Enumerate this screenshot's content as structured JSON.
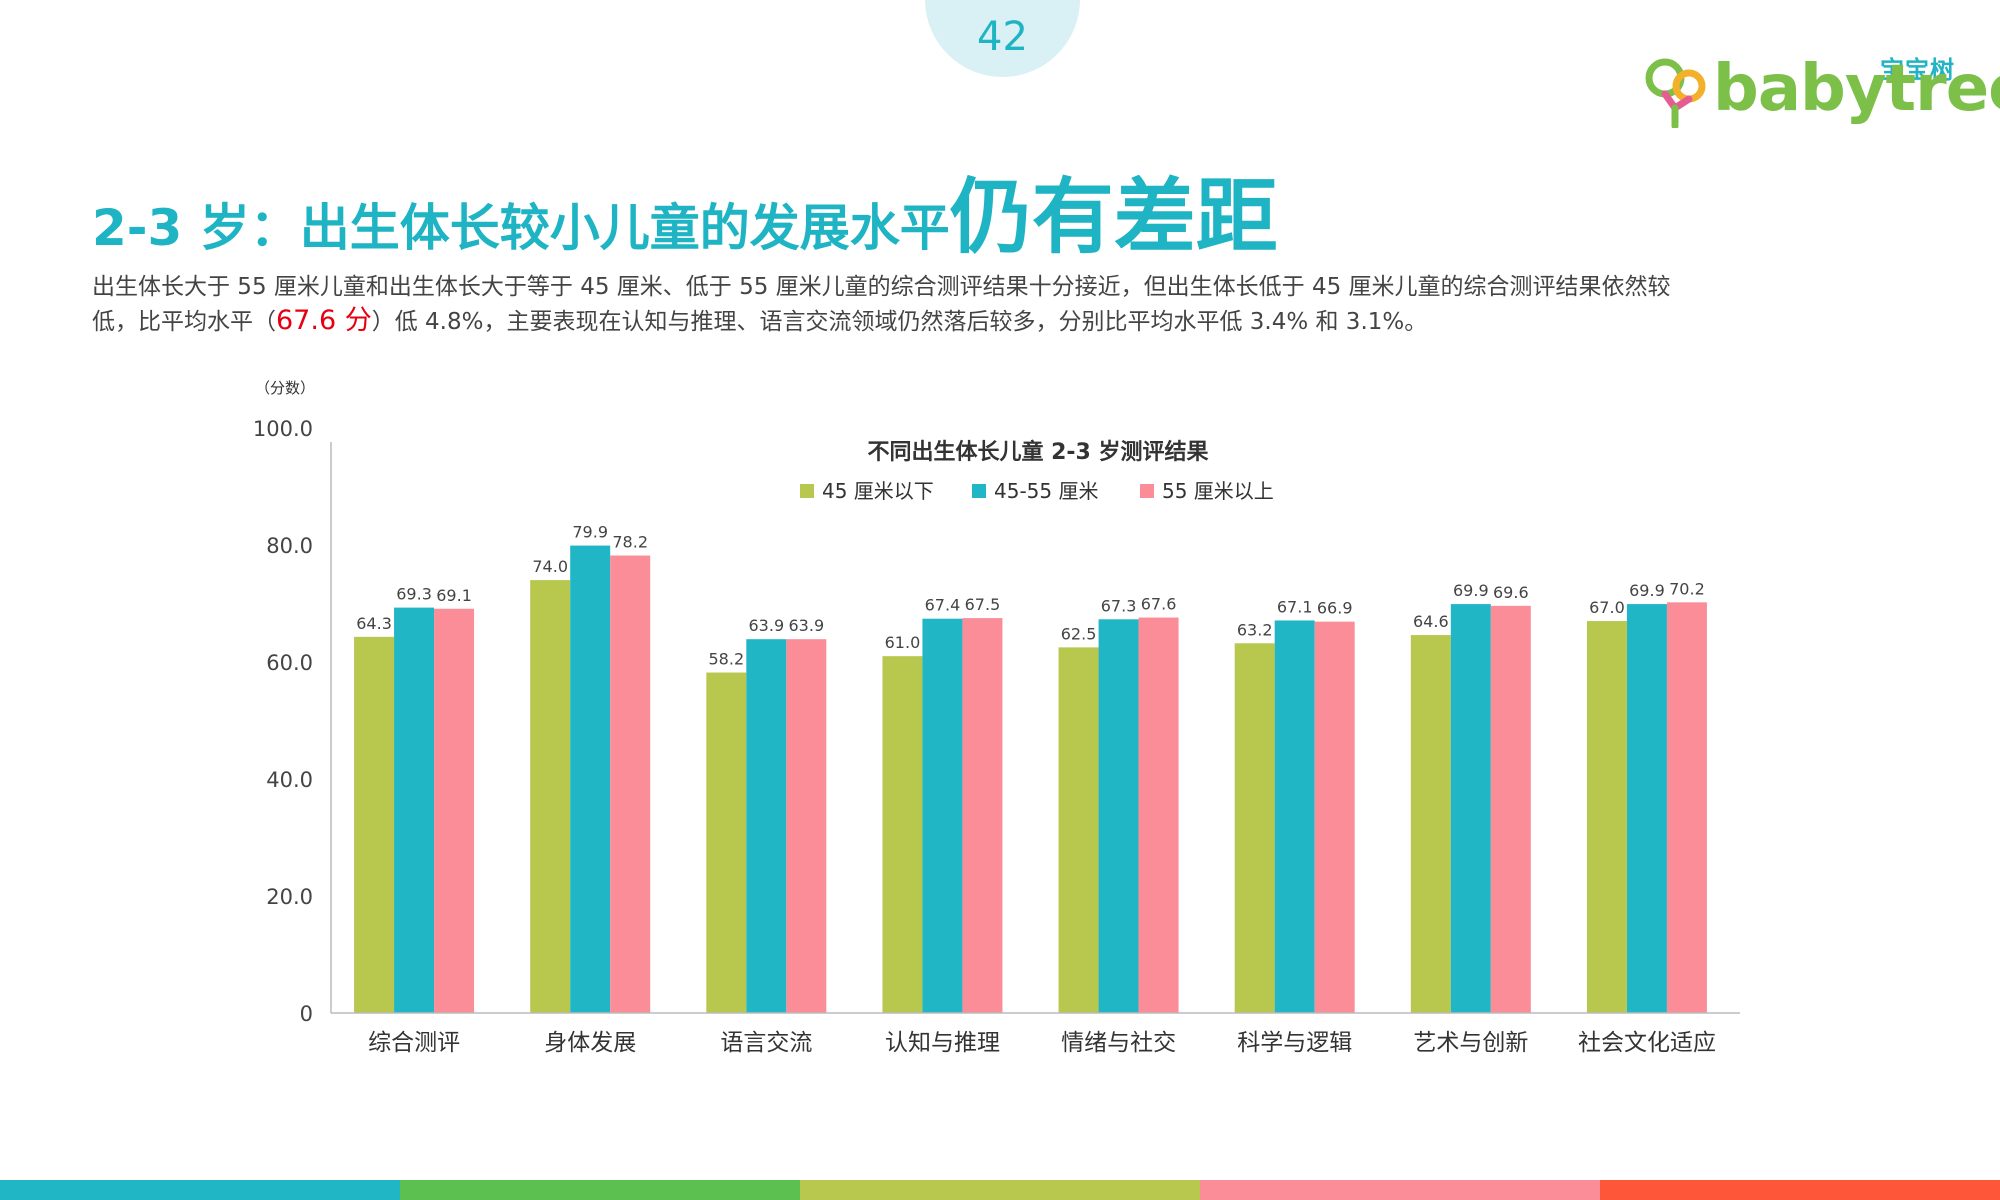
{
  "page_number": "42",
  "logo": {
    "cn": "宝宝树",
    "en": "babytree"
  },
  "title": {
    "main": "2-3 岁：出生体长较小儿童的发展水平",
    "emphasis": "仍有差距"
  },
  "description": {
    "part1": "出生体长大于 55 厘米儿童和出生体长大于等于 45 厘米、低于 55 厘米儿童的综合测评结果十分接近，但出生体长低于 45 厘米儿童的综合测评结果依然较低，比平均水平（",
    "highlight": "67.6 分",
    "part2": "）低 4.8%，主要表现在认知与推理、语言交流领域仍然落后较多，分别比平均水平低 3.4% 和 3.1%。"
  },
  "colors": {
    "brand": "#1fb4c4",
    "series": [
      "#b8c84e",
      "#21b6c5",
      "#fa8d98"
    ],
    "footer": [
      "#21b6c5",
      "#5cc051",
      "#b8c84e",
      "#fa8d98",
      "#fe5639"
    ]
  },
  "chart_data": {
    "type": "bar",
    "title": "不同出生体长儿童 2-3 岁测评结果",
    "ylabel": "（分数）",
    "ylim": [
      0,
      100
    ],
    "yticks": [
      "0",
      "20.0",
      "40.0",
      "60.0",
      "80.0",
      "100.0"
    ],
    "legend_position": "top-center",
    "categories": [
      "综合测评",
      "身体发展",
      "语言交流",
      "认知与推理",
      "情绪与社交",
      "科学与逻辑",
      "艺术与创新",
      "社会文化适应"
    ],
    "series": [
      {
        "name": "45 厘米以下",
        "values": [
          64.3,
          74.0,
          58.2,
          61.0,
          62.5,
          63.2,
          64.6,
          67.0
        ]
      },
      {
        "name": "45-55 厘米",
        "values": [
          69.3,
          79.9,
          63.9,
          67.4,
          67.3,
          67.1,
          69.9,
          69.9
        ]
      },
      {
        "name": "55 厘米以上",
        "values": [
          69.1,
          78.2,
          63.9,
          67.5,
          67.6,
          66.9,
          69.6,
          70.2
        ]
      }
    ]
  }
}
